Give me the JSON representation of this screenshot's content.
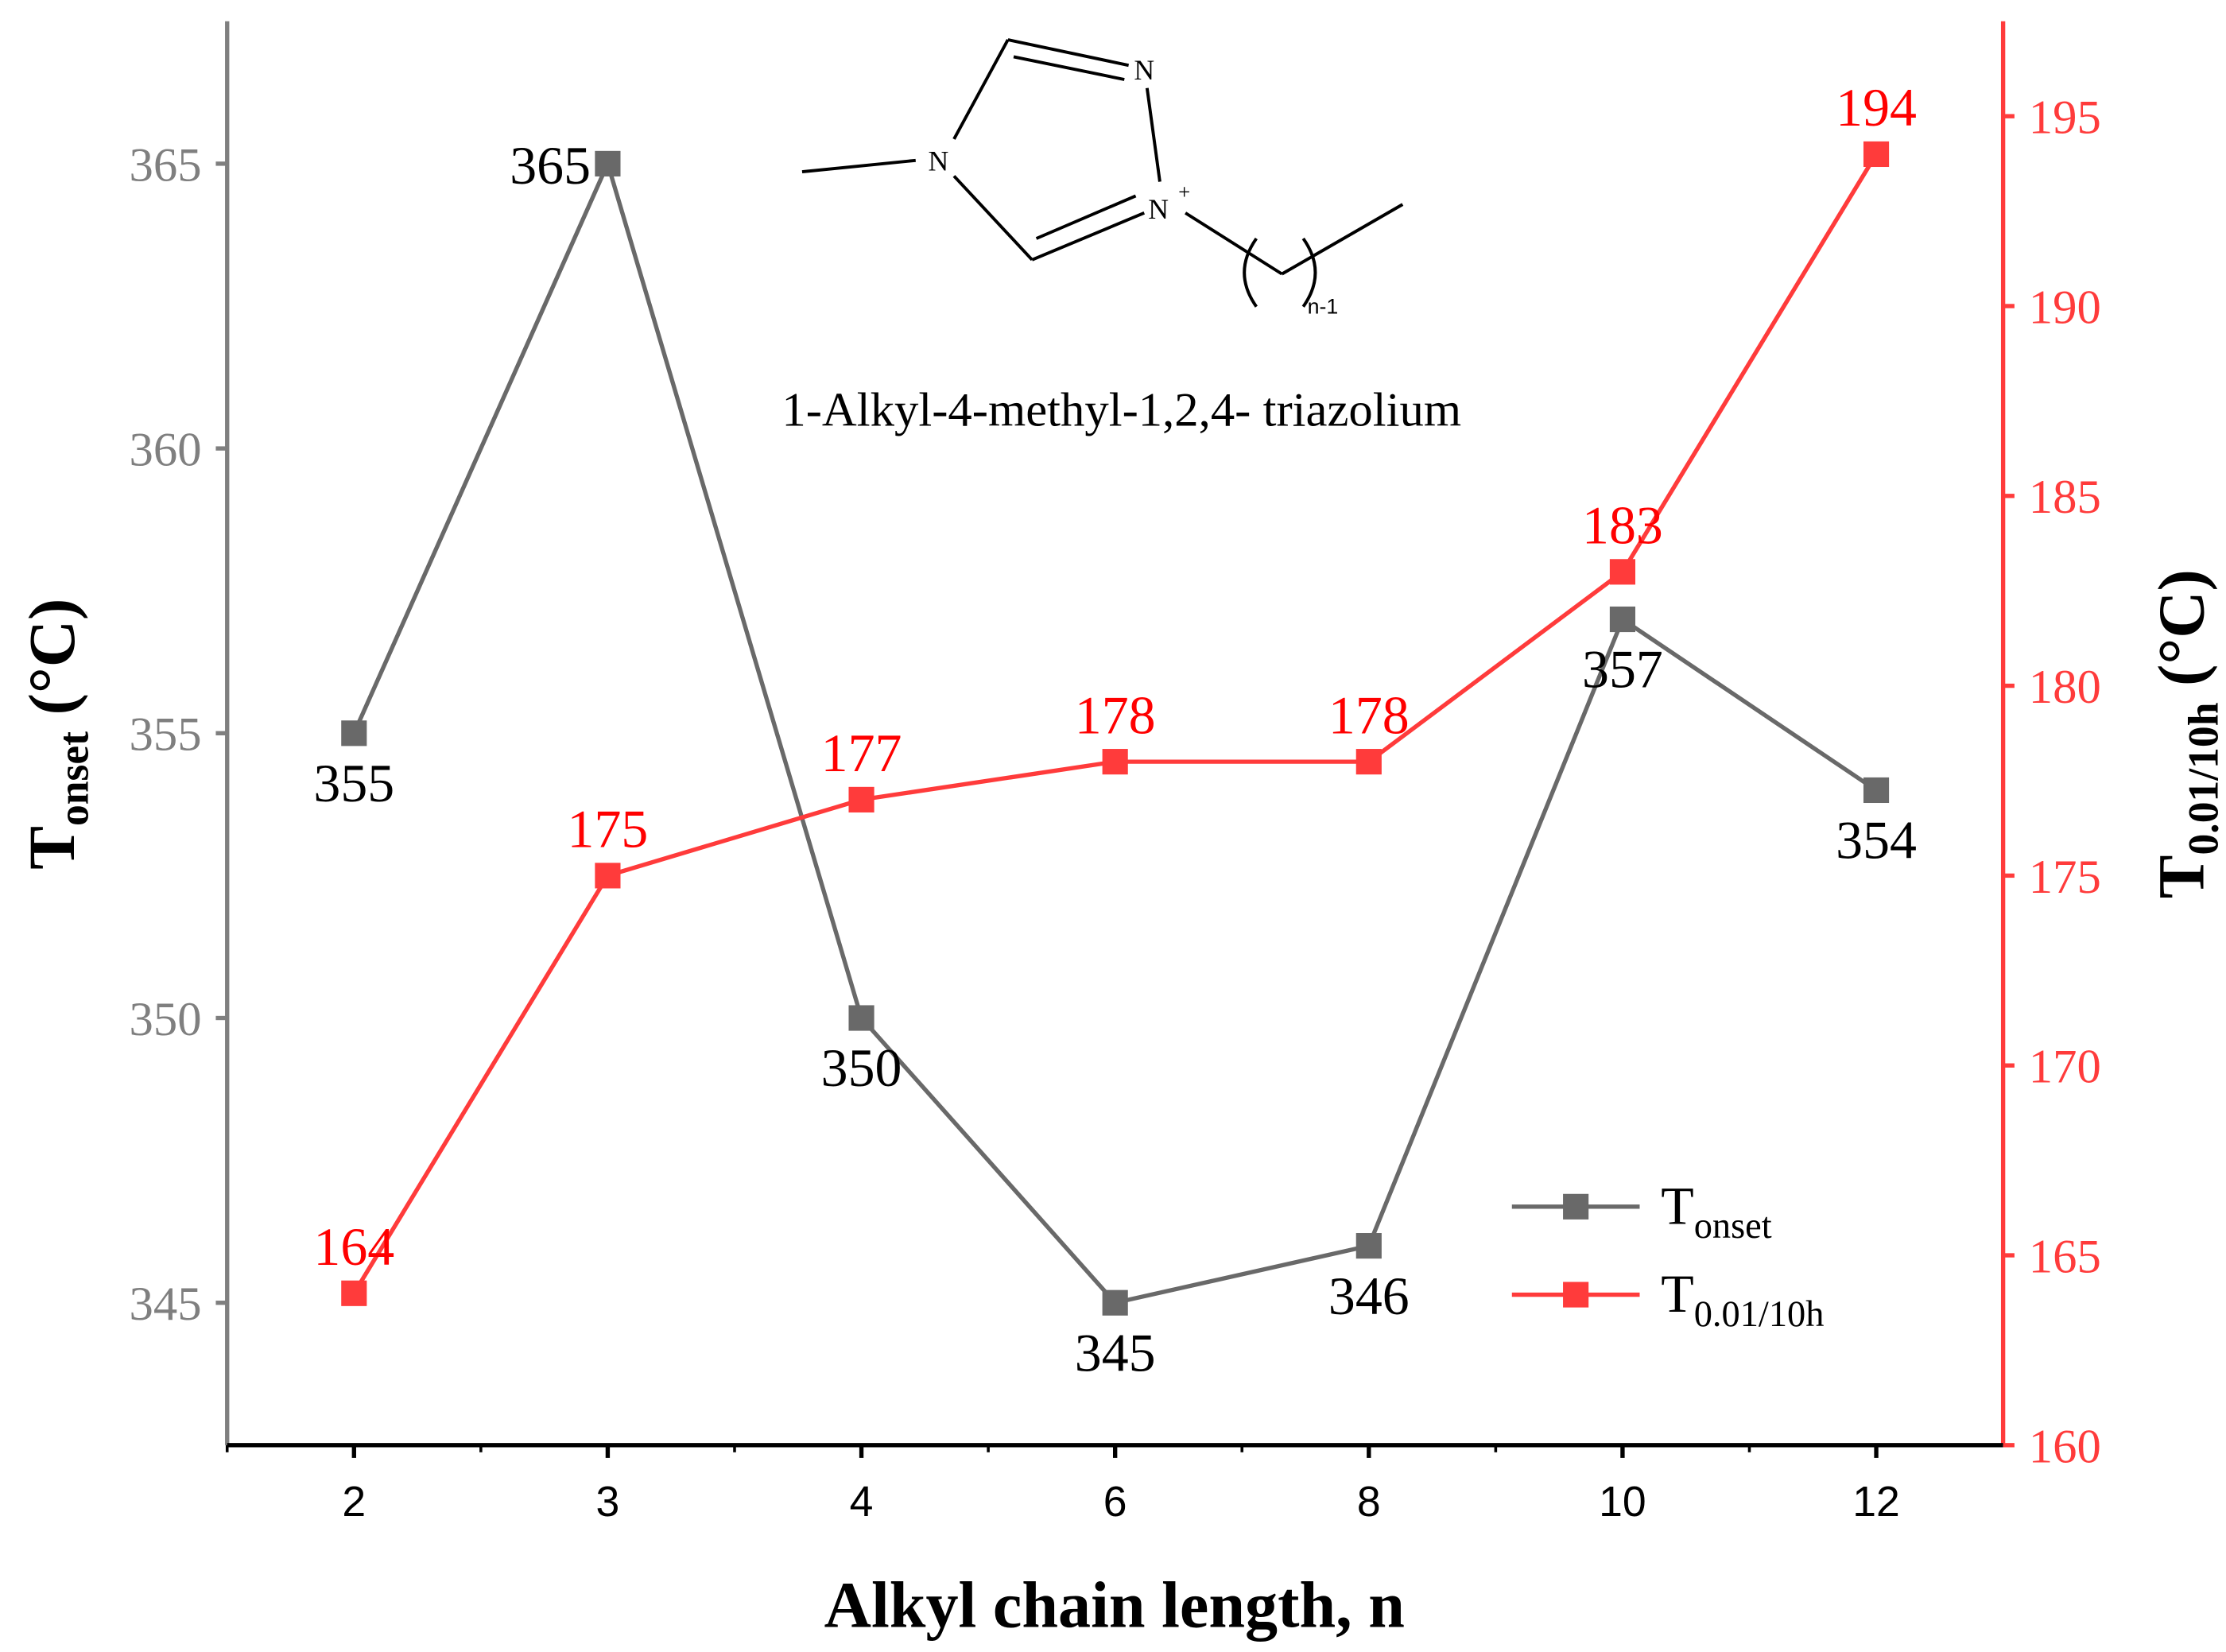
{
  "chart_data": {
    "type": "line",
    "categories": [
      "2",
      "3",
      "4",
      "6",
      "8",
      "10",
      "12"
    ],
    "x_label": "Alkyl chain length, n",
    "y_label": {
      "main": "T",
      "sub": "onset",
      "unit": " (°C)"
    },
    "y2_label": {
      "main": "T",
      "sub": "0.01/10h",
      "unit": " (°C)"
    },
    "annotation": "1-Alkyl-4-methyl-1,2,4- triazolium",
    "structure_labels": {
      "n_top": "N",
      "n_left": "N",
      "n_plus": "N",
      "plus": "+",
      "repeat": "n-1"
    },
    "ylim": [
      342.5,
      367.5
    ],
    "yticks": [
      345,
      350,
      355,
      360,
      365
    ],
    "y2lim": [
      160,
      197.5
    ],
    "y2ticks": [
      160,
      165,
      170,
      175,
      180,
      185,
      190,
      195
    ],
    "legend": "lower right",
    "series": [
      {
        "name": "T",
        "name_sub": "onset",
        "color": "#696969",
        "label_color": "#000000",
        "values": [
          355,
          365,
          350,
          345,
          346,
          357,
          354
        ]
      },
      {
        "name": "T",
        "name_sub": "0.01/10h",
        "color": "#ff3b3b",
        "label_color": "#ff0000",
        "axis": "y2",
        "values": [
          164,
          175,
          177,
          178,
          178,
          183,
          194
        ]
      }
    ]
  }
}
